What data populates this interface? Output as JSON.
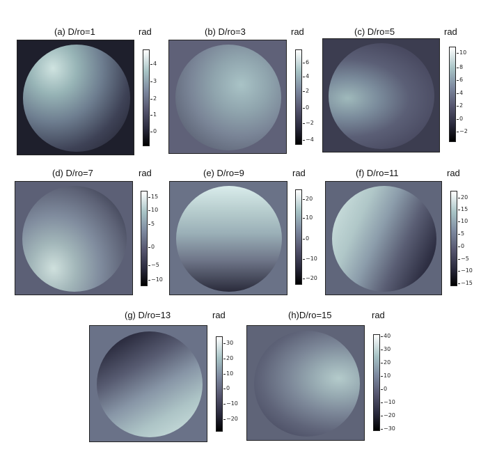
{
  "unit_label": "rad",
  "panels": [
    {
      "title": "(a) D/ro=1",
      "ticks": [
        "4",
        "3",
        "2",
        "1",
        "0"
      ]
    },
    {
      "title": "(b) D/ro=3",
      "ticks": [
        "6",
        "4",
        "2",
        "0",
        "−2",
        "−4"
      ]
    },
    {
      "title": "(c) D/ro=5",
      "ticks": [
        "10",
        "8",
        "6",
        "4",
        "2",
        "0",
        "−2"
      ]
    },
    {
      "title": "(d) D/ro=7",
      "ticks": [
        "15",
        "10",
        "5",
        "0",
        "−5",
        "−10"
      ]
    },
    {
      "title": "(e) D/ro=9",
      "ticks": [
        "20",
        "10",
        "0",
        "−10",
        "−20"
      ]
    },
    {
      "title": "(f) D/ro=11",
      "ticks": [
        "20",
        "15",
        "10",
        "5",
        "0",
        "−5",
        "−10",
        "−15"
      ]
    },
    {
      "title": "(g) D/ro=13",
      "ticks": [
        "30",
        "20",
        "10",
        "0",
        "−10",
        "−20"
      ]
    },
    {
      "title": "(h)D/ro=15",
      "ticks": [
        "40",
        "30",
        "20",
        "10",
        "0",
        "−10",
        "−20",
        "−30"
      ]
    }
  ]
}
